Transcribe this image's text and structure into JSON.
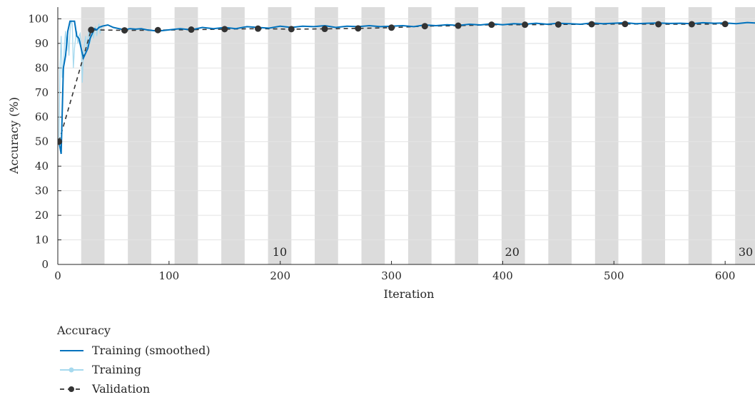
{
  "chart_data": {
    "type": "line",
    "xlabel": "Iteration",
    "ylabel": "Accuracy (%)",
    "xlim": [
      0,
      628
    ],
    "ylim": [
      0,
      105
    ],
    "xticks": [
      0,
      100,
      200,
      300,
      400,
      500,
      600
    ],
    "yticks": [
      0,
      10,
      20,
      30,
      40,
      50,
      60,
      70,
      80,
      90,
      100
    ],
    "grid": "horizontal",
    "epoch_bands": [
      [
        21,
        42
      ],
      [
        63,
        84
      ],
      [
        105,
        126
      ],
      [
        147,
        168
      ],
      [
        189,
        210
      ],
      [
        231,
        252
      ],
      [
        273,
        294
      ],
      [
        315,
        336
      ],
      [
        357,
        378
      ],
      [
        399,
        420
      ],
      [
        441,
        462
      ],
      [
        483,
        504
      ],
      [
        525,
        546
      ],
      [
        567,
        588
      ],
      [
        609,
        628
      ]
    ],
    "epoch_labels": [
      {
        "iteration": 193,
        "text": "10"
      },
      {
        "iteration": 402,
        "text": "20"
      },
      {
        "iteration": 612,
        "text": "30"
      }
    ],
    "legend": {
      "title": "Accuracy",
      "position": "bottom-left",
      "entries": [
        "Training (smoothed)",
        "Training",
        "Validation"
      ]
    },
    "series": [
      {
        "name": "Training (smoothed)",
        "color": "#0072BD",
        "x": [
          1,
          3,
          5,
          7,
          9,
          11,
          13,
          15,
          17,
          19,
          21,
          23,
          25,
          27,
          29,
          31,
          33,
          35,
          37,
          40,
          45,
          50,
          55,
          60,
          65,
          70,
          75,
          80,
          90,
          100,
          110,
          120,
          130,
          140,
          150,
          160,
          170,
          180,
          190,
          200,
          210,
          220,
          230,
          240,
          250,
          260,
          270,
          280,
          290,
          300,
          310,
          320,
          330,
          340,
          350,
          360,
          370,
          380,
          390,
          400,
          410,
          420,
          430,
          440,
          450,
          460,
          470,
          480,
          490,
          500,
          510,
          520,
          530,
          540,
          550,
          560,
          570,
          580,
          590,
          600,
          610,
          620,
          628
        ],
        "y": [
          50,
          45,
          80,
          85,
          95,
          99,
          99,
          99,
          93,
          92,
          88,
          84,
          86,
          88,
          92,
          94,
          96,
          95.5,
          96.5,
          97,
          97.5,
          96.5,
          96,
          95.5,
          96,
          95.8,
          96,
          95.5,
          95,
          95.5,
          96,
          95.5,
          96.5,
          96,
          96.5,
          96,
          96.8,
          96.5,
          96.2,
          97,
          96.5,
          97,
          96.8,
          97.2,
          96.5,
          97,
          96.8,
          97.2,
          96.8,
          97,
          97.2,
          96.8,
          97.5,
          97.2,
          97.6,
          97.3,
          97.8,
          97.5,
          98,
          97.6,
          98,
          97.8,
          98.2,
          97.8,
          98.2,
          98,
          97.8,
          98.3,
          98,
          98.2,
          98.4,
          98,
          98.2,
          98.3,
          98.1,
          98.2,
          98,
          98.4,
          98.2,
          98.3,
          98,
          98.5,
          98.3
        ]
      },
      {
        "name": "Training",
        "color": "#A6D9EE",
        "x": [
          1,
          2,
          3,
          4,
          5,
          6,
          7,
          8,
          9,
          10,
          11,
          12,
          13,
          14,
          15,
          16,
          17,
          18,
          19,
          20,
          21,
          22,
          23,
          24,
          25,
          26,
          27,
          28,
          29,
          30,
          31,
          32,
          33,
          34,
          35,
          36,
          37,
          38,
          39,
          40
        ],
        "y": [
          50,
          80,
          93,
          76,
          80,
          90,
          95,
          87,
          93,
          85,
          95,
          99,
          98,
          80,
          88,
          92,
          95,
          90,
          93,
          94,
          89,
          74,
          85,
          90,
          93,
          88,
          92,
          95,
          90,
          93,
          96,
          92,
          95,
          97,
          93,
          96,
          98,
          94,
          96,
          97
        ]
      },
      {
        "name": "Validation",
        "color": "#333333",
        "x": [
          1,
          30,
          60,
          90,
          120,
          150,
          180,
          210,
          240,
          270,
          300,
          330,
          360,
          390,
          420,
          450,
          480,
          510,
          540,
          570,
          600
        ],
        "y": [
          50,
          95.5,
          95.3,
          95.4,
          95.6,
          95.8,
          96,
          95.8,
          95.9,
          96.1,
          96.4,
          97,
          97.2,
          97.6,
          97.6,
          97.7,
          97.8,
          97.9,
          97.8,
          97.8,
          97.9
        ]
      }
    ]
  }
}
